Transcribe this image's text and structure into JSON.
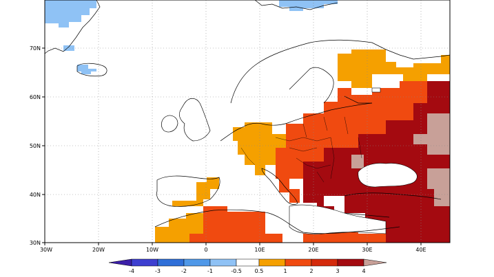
{
  "map": {
    "region": "Europe",
    "lon_range": [
      -30,
      45
    ],
    "lat_range": [
      30,
      80
    ],
    "lon_ticks": [
      "30W",
      "20W",
      "10W",
      "0",
      "10E",
      "20E",
      "30E",
      "40E"
    ],
    "lat_ticks": [
      "30N",
      "40N",
      "50N",
      "60N",
      "70N"
    ],
    "grid": "dotted"
  },
  "colorbar": {
    "labels": [
      "-4",
      "-3",
      "-2",
      "-1",
      "-0.5",
      "0.5",
      "1",
      "2",
      "3",
      "4"
    ],
    "colors": [
      "#3b1fa8",
      "#3d3fd0",
      "#2f6fd8",
      "#4f98e8",
      "#8fc2f5",
      "#ffffff",
      "#f5a000",
      "#f04a10",
      "#d42a0c",
      "#a40a10",
      "#c8a098"
    ]
  },
  "anomaly_colors": {
    "cool_light": "#8fc2f5",
    "warm_1": "#f5a000",
    "warm_2": "#f04a10",
    "warm_3": "#a40a10",
    "warm_4": "#c8a098"
  }
}
